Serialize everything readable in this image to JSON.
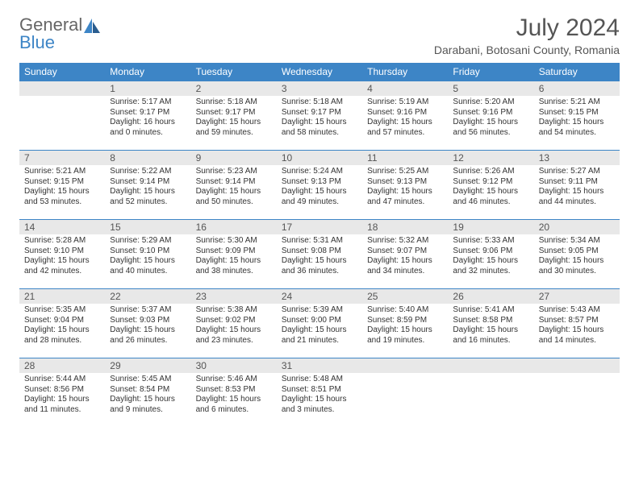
{
  "logo": {
    "part1": "General",
    "part2": "Blue"
  },
  "title": "July 2024",
  "location": "Darabani, Botosani County, Romania",
  "colors": {
    "header_bg": "#3d85c6",
    "header_text": "#ffffff",
    "daynum_bg": "#e8e8e8",
    "text": "#333333",
    "title_text": "#555555",
    "border": "#3d85c6"
  },
  "dayNames": [
    "Sunday",
    "Monday",
    "Tuesday",
    "Wednesday",
    "Thursday",
    "Friday",
    "Saturday"
  ],
  "weeks": [
    [
      null,
      {
        "n": "1",
        "sr": "Sunrise: 5:17 AM",
        "ss": "Sunset: 9:17 PM",
        "d1": "Daylight: 16 hours",
        "d2": "and 0 minutes."
      },
      {
        "n": "2",
        "sr": "Sunrise: 5:18 AM",
        "ss": "Sunset: 9:17 PM",
        "d1": "Daylight: 15 hours",
        "d2": "and 59 minutes."
      },
      {
        "n": "3",
        "sr": "Sunrise: 5:18 AM",
        "ss": "Sunset: 9:17 PM",
        "d1": "Daylight: 15 hours",
        "d2": "and 58 minutes."
      },
      {
        "n": "4",
        "sr": "Sunrise: 5:19 AM",
        "ss": "Sunset: 9:16 PM",
        "d1": "Daylight: 15 hours",
        "d2": "and 57 minutes."
      },
      {
        "n": "5",
        "sr": "Sunrise: 5:20 AM",
        "ss": "Sunset: 9:16 PM",
        "d1": "Daylight: 15 hours",
        "d2": "and 56 minutes."
      },
      {
        "n": "6",
        "sr": "Sunrise: 5:21 AM",
        "ss": "Sunset: 9:15 PM",
        "d1": "Daylight: 15 hours",
        "d2": "and 54 minutes."
      }
    ],
    [
      {
        "n": "7",
        "sr": "Sunrise: 5:21 AM",
        "ss": "Sunset: 9:15 PM",
        "d1": "Daylight: 15 hours",
        "d2": "and 53 minutes."
      },
      {
        "n": "8",
        "sr": "Sunrise: 5:22 AM",
        "ss": "Sunset: 9:14 PM",
        "d1": "Daylight: 15 hours",
        "d2": "and 52 minutes."
      },
      {
        "n": "9",
        "sr": "Sunrise: 5:23 AM",
        "ss": "Sunset: 9:14 PM",
        "d1": "Daylight: 15 hours",
        "d2": "and 50 minutes."
      },
      {
        "n": "10",
        "sr": "Sunrise: 5:24 AM",
        "ss": "Sunset: 9:13 PM",
        "d1": "Daylight: 15 hours",
        "d2": "and 49 minutes."
      },
      {
        "n": "11",
        "sr": "Sunrise: 5:25 AM",
        "ss": "Sunset: 9:13 PM",
        "d1": "Daylight: 15 hours",
        "d2": "and 47 minutes."
      },
      {
        "n": "12",
        "sr": "Sunrise: 5:26 AM",
        "ss": "Sunset: 9:12 PM",
        "d1": "Daylight: 15 hours",
        "d2": "and 46 minutes."
      },
      {
        "n": "13",
        "sr": "Sunrise: 5:27 AM",
        "ss": "Sunset: 9:11 PM",
        "d1": "Daylight: 15 hours",
        "d2": "and 44 minutes."
      }
    ],
    [
      {
        "n": "14",
        "sr": "Sunrise: 5:28 AM",
        "ss": "Sunset: 9:10 PM",
        "d1": "Daylight: 15 hours",
        "d2": "and 42 minutes."
      },
      {
        "n": "15",
        "sr": "Sunrise: 5:29 AM",
        "ss": "Sunset: 9:10 PM",
        "d1": "Daylight: 15 hours",
        "d2": "and 40 minutes."
      },
      {
        "n": "16",
        "sr": "Sunrise: 5:30 AM",
        "ss": "Sunset: 9:09 PM",
        "d1": "Daylight: 15 hours",
        "d2": "and 38 minutes."
      },
      {
        "n": "17",
        "sr": "Sunrise: 5:31 AM",
        "ss": "Sunset: 9:08 PM",
        "d1": "Daylight: 15 hours",
        "d2": "and 36 minutes."
      },
      {
        "n": "18",
        "sr": "Sunrise: 5:32 AM",
        "ss": "Sunset: 9:07 PM",
        "d1": "Daylight: 15 hours",
        "d2": "and 34 minutes."
      },
      {
        "n": "19",
        "sr": "Sunrise: 5:33 AM",
        "ss": "Sunset: 9:06 PM",
        "d1": "Daylight: 15 hours",
        "d2": "and 32 minutes."
      },
      {
        "n": "20",
        "sr": "Sunrise: 5:34 AM",
        "ss": "Sunset: 9:05 PM",
        "d1": "Daylight: 15 hours",
        "d2": "and 30 minutes."
      }
    ],
    [
      {
        "n": "21",
        "sr": "Sunrise: 5:35 AM",
        "ss": "Sunset: 9:04 PM",
        "d1": "Daylight: 15 hours",
        "d2": "and 28 minutes."
      },
      {
        "n": "22",
        "sr": "Sunrise: 5:37 AM",
        "ss": "Sunset: 9:03 PM",
        "d1": "Daylight: 15 hours",
        "d2": "and 26 minutes."
      },
      {
        "n": "23",
        "sr": "Sunrise: 5:38 AM",
        "ss": "Sunset: 9:02 PM",
        "d1": "Daylight: 15 hours",
        "d2": "and 23 minutes."
      },
      {
        "n": "24",
        "sr": "Sunrise: 5:39 AM",
        "ss": "Sunset: 9:00 PM",
        "d1": "Daylight: 15 hours",
        "d2": "and 21 minutes."
      },
      {
        "n": "25",
        "sr": "Sunrise: 5:40 AM",
        "ss": "Sunset: 8:59 PM",
        "d1": "Daylight: 15 hours",
        "d2": "and 19 minutes."
      },
      {
        "n": "26",
        "sr": "Sunrise: 5:41 AM",
        "ss": "Sunset: 8:58 PM",
        "d1": "Daylight: 15 hours",
        "d2": "and 16 minutes."
      },
      {
        "n": "27",
        "sr": "Sunrise: 5:43 AM",
        "ss": "Sunset: 8:57 PM",
        "d1": "Daylight: 15 hours",
        "d2": "and 14 minutes."
      }
    ],
    [
      {
        "n": "28",
        "sr": "Sunrise: 5:44 AM",
        "ss": "Sunset: 8:56 PM",
        "d1": "Daylight: 15 hours",
        "d2": "and 11 minutes."
      },
      {
        "n": "29",
        "sr": "Sunrise: 5:45 AM",
        "ss": "Sunset: 8:54 PM",
        "d1": "Daylight: 15 hours",
        "d2": "and 9 minutes."
      },
      {
        "n": "30",
        "sr": "Sunrise: 5:46 AM",
        "ss": "Sunset: 8:53 PM",
        "d1": "Daylight: 15 hours",
        "d2": "and 6 minutes."
      },
      {
        "n": "31",
        "sr": "Sunrise: 5:48 AM",
        "ss": "Sunset: 8:51 PM",
        "d1": "Daylight: 15 hours",
        "d2": "and 3 minutes."
      },
      null,
      null,
      null
    ]
  ]
}
